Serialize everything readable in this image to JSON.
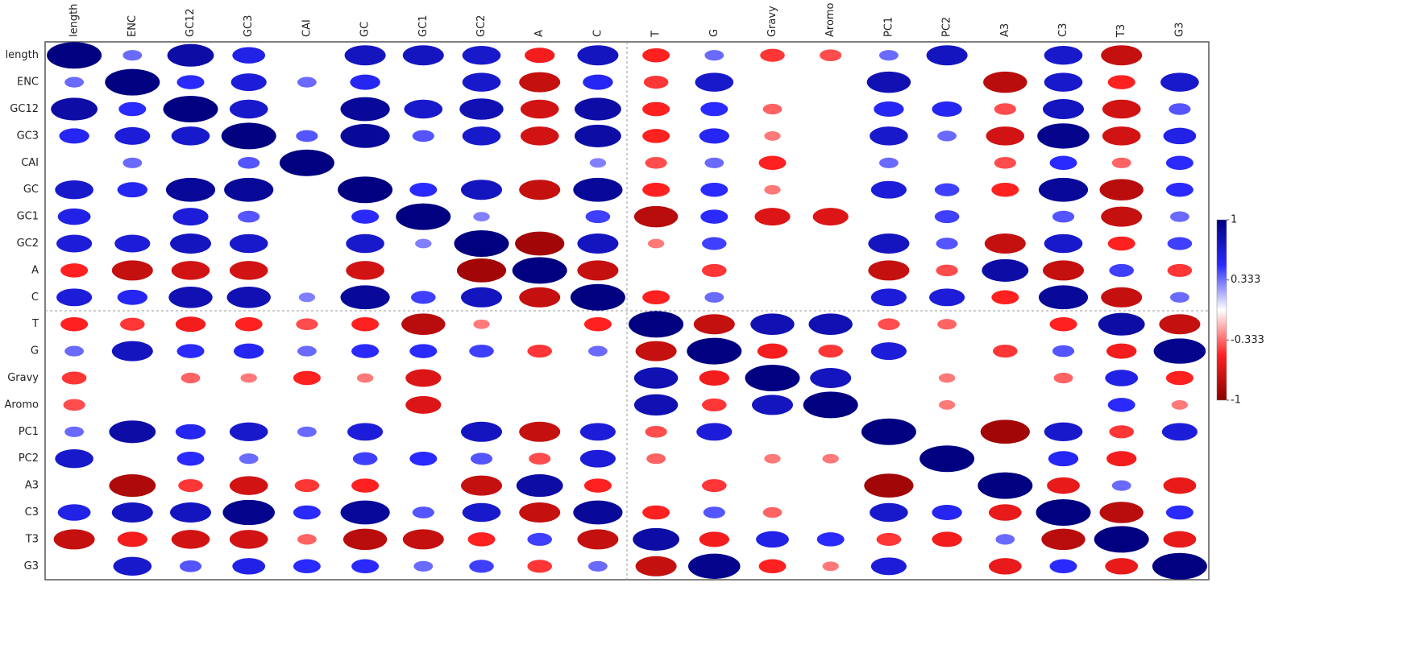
{
  "chart_data": {
    "type": "correlation",
    "categories": [
      "length",
      "ENC",
      "GC12",
      "GC3",
      "CAI",
      "GC",
      "GC1",
      "GC2",
      "A",
      "C",
      "T",
      "G",
      "Gravy",
      "Aromo",
      "PC1",
      "PC2",
      "A3",
      "C3",
      "T3",
      "G3"
    ],
    "values": [
      [
        1,
        0.35,
        0.85,
        0.6,
        null,
        0.75,
        0.75,
        0.7,
        -0.55,
        0.75,
        -0.5,
        0.35,
        -0.45,
        -0.4,
        0.35,
        0.75,
        null,
        0.7,
        -0.75,
        null
      ],
      [
        0.35,
        1,
        0.5,
        0.65,
        0.35,
        0.55,
        null,
        0.7,
        -0.75,
        0.55,
        -0.45,
        0.7,
        null,
        null,
        0.8,
        null,
        -0.8,
        0.7,
        -0.5,
        0.7
      ],
      [
        0.85,
        0.5,
        1,
        0.7,
        null,
        0.9,
        0.7,
        0.8,
        -0.7,
        0.85,
        -0.5,
        0.5,
        -0.35,
        null,
        0.55,
        0.55,
        -0.4,
        0.75,
        -0.7,
        0.4
      ],
      [
        0.55,
        0.65,
        0.7,
        1,
        0.4,
        0.9,
        0.4,
        0.7,
        -0.7,
        0.85,
        -0.5,
        0.55,
        -0.3,
        null,
        0.7,
        0.35,
        -0.7,
        0.95,
        -0.7,
        0.6
      ],
      [
        null,
        0.35,
        null,
        0.4,
        1,
        null,
        null,
        null,
        null,
        0.3,
        -0.4,
        0.35,
        -0.5,
        null,
        0.35,
        null,
        -0.4,
        0.5,
        -0.35,
        0.5
      ],
      [
        0.7,
        0.55,
        0.9,
        0.9,
        null,
        1,
        0.5,
        0.75,
        -0.75,
        0.9,
        -0.5,
        0.5,
        -0.3,
        null,
        0.65,
        0.45,
        -0.5,
        0.9,
        -0.8,
        0.5
      ],
      [
        0.6,
        null,
        0.65,
        0.4,
        null,
        0.5,
        1,
        0.3,
        null,
        0.45,
        -0.8,
        0.5,
        -0.65,
        -0.65,
        null,
        0.45,
        null,
        0.4,
        -0.75,
        0.35
      ],
      [
        0.65,
        0.65,
        0.75,
        0.7,
        null,
        0.7,
        0.3,
        1,
        -0.9,
        0.75,
        -0.3,
        0.45,
        null,
        null,
        0.75,
        0.4,
        -0.75,
        0.7,
        -0.5,
        0.45
      ],
      [
        -0.5,
        -0.75,
        -0.7,
        -0.7,
        null,
        -0.7,
        null,
        -0.9,
        1,
        -0.75,
        null,
        -0.45,
        null,
        null,
        -0.75,
        -0.4,
        0.85,
        -0.75,
        0.45,
        -0.45
      ],
      [
        0.65,
        0.55,
        0.8,
        0.8,
        0.3,
        0.9,
        0.45,
        0.75,
        -0.75,
        1,
        -0.5,
        0.35,
        null,
        null,
        0.65,
        0.65,
        -0.5,
        0.9,
        -0.75,
        0.35
      ],
      [
        -0.5,
        -0.45,
        -0.55,
        -0.5,
        -0.4,
        -0.5,
        -0.8,
        -0.3,
        null,
        -0.5,
        1,
        -0.75,
        0.8,
        0.8,
        -0.4,
        -0.35,
        null,
        -0.5,
        0.85,
        -0.75
      ],
      [
        0.35,
        0.75,
        0.5,
        0.55,
        0.35,
        0.5,
        0.5,
        0.45,
        -0.45,
        0.35,
        -0.75,
        1,
        -0.55,
        -0.45,
        0.65,
        null,
        -0.45,
        0.4,
        -0.55,
        0.95
      ],
      [
        -0.45,
        null,
        -0.35,
        -0.3,
        -0.5,
        -0.3,
        -0.65,
        null,
        null,
        null,
        0.8,
        -0.55,
        1,
        0.75,
        null,
        -0.3,
        null,
        -0.35,
        0.6,
        -0.5
      ],
      [
        -0.4,
        null,
        null,
        null,
        null,
        null,
        -0.65,
        null,
        null,
        null,
        0.8,
        -0.45,
        0.75,
        1,
        null,
        -0.3,
        null,
        null,
        0.5,
        -0.3
      ],
      [
        0.35,
        0.85,
        0.55,
        0.7,
        0.35,
        0.65,
        null,
        0.75,
        -0.75,
        0.65,
        -0.4,
        0.65,
        null,
        null,
        1,
        null,
        -0.9,
        0.7,
        -0.45,
        0.65
      ],
      [
        0.7,
        null,
        0.5,
        0.35,
        null,
        0.45,
        0.5,
        0.4,
        -0.4,
        0.65,
        -0.35,
        null,
        -0.3,
        -0.3,
        null,
        1,
        null,
        0.55,
        -0.55,
        null
      ],
      [
        null,
        -0.85,
        -0.45,
        -0.7,
        -0.45,
        -0.5,
        null,
        -0.75,
        0.85,
        -0.5,
        null,
        -0.45,
        null,
        null,
        -0.9,
        null,
        1,
        -0.6,
        0.35,
        -0.6
      ],
      [
        0.6,
        0.75,
        0.75,
        0.95,
        0.5,
        0.9,
        0.4,
        0.7,
        -0.75,
        0.9,
        -0.5,
        0.4,
        -0.35,
        null,
        0.7,
        0.55,
        -0.6,
        1,
        -0.8,
        0.5
      ],
      [
        -0.75,
        -0.55,
        -0.7,
        -0.7,
        -0.35,
        -0.8,
        -0.75,
        -0.5,
        0.45,
        -0.75,
        0.85,
        -0.55,
        0.6,
        0.5,
        -0.45,
        -0.55,
        0.35,
        -0.8,
        1,
        -0.6
      ],
      [
        null,
        0.7,
        0.4,
        0.6,
        0.5,
        0.5,
        0.35,
        0.45,
        -0.45,
        0.35,
        -0.75,
        0.95,
        -0.5,
        -0.3,
        0.65,
        null,
        -0.6,
        0.5,
        -0.6,
        1
      ]
    ],
    "colorscale": [
      "#8b0000",
      "#ff2020",
      "#ffffff",
      "#2a2aff",
      "#000080"
    ],
    "colorbar_lim": [
      -1,
      1
    ],
    "colorbar_ticks": [
      1,
      0.333,
      -0.333,
      -1
    ]
  }
}
